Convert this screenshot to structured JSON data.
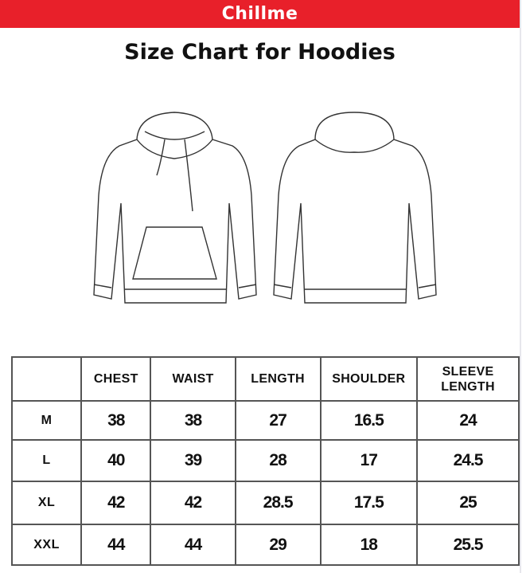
{
  "brand": "Chillme",
  "brand_color": "#e8202a",
  "title": "Size Chart for Hoodies",
  "illustrations": [
    "hoodie-front",
    "hoodie-back"
  ],
  "table": {
    "headers": [
      "",
      "CHEST",
      "WAIST",
      "LENGTH",
      "SHOULDER",
      "SLEEVE LENGTH"
    ],
    "rows": [
      [
        "M",
        "38",
        "38",
        "27",
        "16.5",
        "24"
      ],
      [
        "L",
        "40",
        "39",
        "28",
        "17",
        "24.5"
      ],
      [
        "XL",
        "42",
        "42",
        "28.5",
        "17.5",
        "25"
      ],
      [
        "XXL",
        "44",
        "44",
        "29",
        "18",
        "25.5"
      ]
    ]
  }
}
